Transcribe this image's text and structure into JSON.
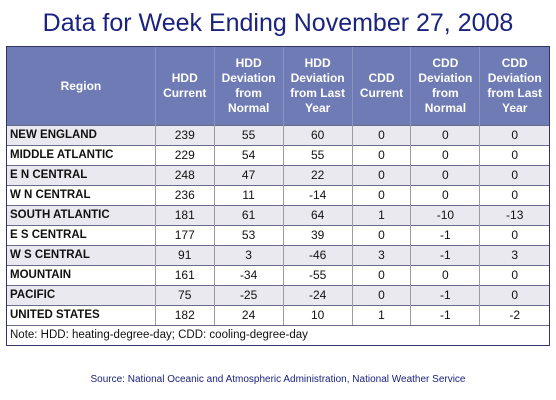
{
  "title": "Data for Week Ending November 27, 2008",
  "table": {
    "headers": [
      "Region",
      "HDD Current",
      "HDD Deviation from Normal",
      "HDD Deviation from Last Year",
      "CDD Current",
      "CDD Deviation from Normal",
      "CDD Deviation from Last Year"
    ],
    "rows": [
      [
        "NEW ENGLAND",
        "239",
        "55",
        "60",
        "0",
        "0",
        "0"
      ],
      [
        "MIDDLE ATLANTIC",
        "229",
        "54",
        "55",
        "0",
        "0",
        "0"
      ],
      [
        "E N CENTRAL",
        "248",
        "47",
        "22",
        "0",
        "0",
        "0"
      ],
      [
        "W N CENTRAL",
        "236",
        "11",
        "-14",
        "0",
        "0",
        "0"
      ],
      [
        "SOUTH ATLANTIC",
        "181",
        "61",
        "64",
        "1",
        "-10",
        "-13"
      ],
      [
        "E S CENTRAL",
        "177",
        "53",
        "39",
        "0",
        "-1",
        "0"
      ],
      [
        "W S CENTRAL",
        "91",
        "3",
        "-46",
        "3",
        "-1",
        "3"
      ],
      [
        "MOUNTAIN",
        "161",
        "-34",
        "-55",
        "0",
        "0",
        "0"
      ],
      [
        "PACIFIC",
        "75",
        "-25",
        "-24",
        "0",
        "-1",
        "0"
      ],
      [
        "UNITED STATES",
        "182",
        "24",
        "10",
        "1",
        "-1",
        "-2"
      ]
    ],
    "note": "Note: HDD: heating-degree-day; CDD: cooling-degree-day"
  },
  "source": "Source:  National Oceanic and Atmospheric Administration, National Weather Service",
  "colors": {
    "title": "#1a237e",
    "header_bg": "#6f7bb4",
    "header_text": "#ffffff",
    "row_shade": "#e9e9ef"
  }
}
